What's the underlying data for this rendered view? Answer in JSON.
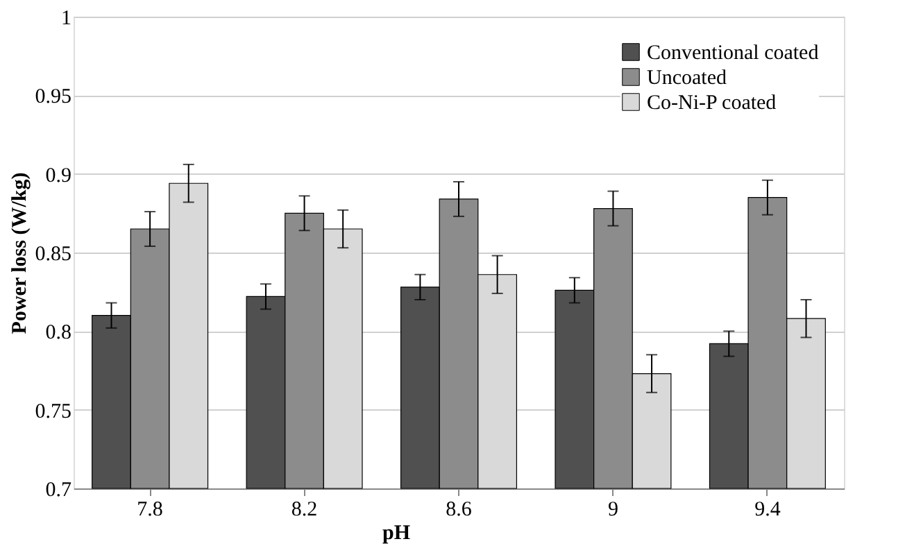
{
  "chart_data": {
    "type": "bar",
    "xlabel": "pH",
    "ylabel": "Power loss (W/kg)",
    "categories": [
      "7.8",
      "8.2",
      "8.6",
      "9",
      "9.4"
    ],
    "series": [
      {
        "name": "Conventional coated",
        "color": "#505050",
        "values": [
          0.81,
          0.822,
          0.828,
          0.826,
          0.792
        ],
        "errors": [
          0.008,
          0.008,
          0.008,
          0.008,
          0.008
        ]
      },
      {
        "name": "Uncoated",
        "color": "#8c8c8c",
        "values": [
          0.865,
          0.875,
          0.884,
          0.878,
          0.885
        ],
        "errors": [
          0.011,
          0.011,
          0.011,
          0.011,
          0.011
        ]
      },
      {
        "name": "Co-Ni-P coated",
        "color": "#d9d9d9",
        "values": [
          0.894,
          0.865,
          0.836,
          0.773,
          0.808
        ],
        "errors": [
          0.012,
          0.012,
          0.012,
          0.012,
          0.012
        ]
      }
    ],
    "ylim": [
      0.7,
      1
    ],
    "yticks": [
      0.7,
      0.75,
      0.8,
      0.85,
      0.9,
      0.95,
      1
    ],
    "grid": "y",
    "legend": "top right"
  }
}
